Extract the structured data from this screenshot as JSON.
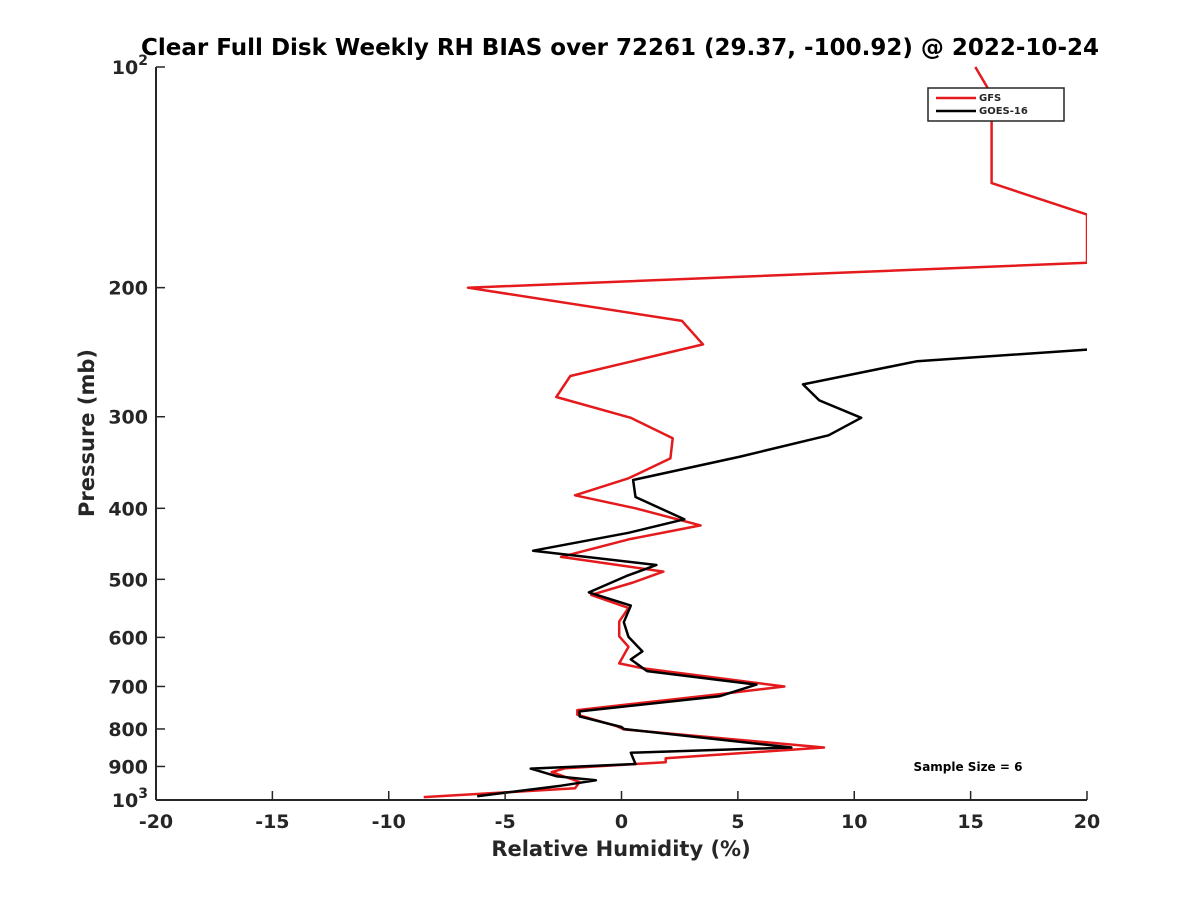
{
  "chart_data": {
    "type": "line",
    "title": "Clear Full Disk Weekly RH BIAS over 72261 (29.37, -100.92) @ 2022-10-24",
    "xlabel": "Relative Humidity (%)",
    "ylabel": "Pressure (mb)",
    "xlim": [
      -20,
      20
    ],
    "ylim": [
      100,
      1000
    ],
    "y_scale": "log",
    "y_reversed": true,
    "grid": false,
    "legend_position": "top-right",
    "x_ticks": [
      {
        "value": -20,
        "label": "-20"
      },
      {
        "value": -15,
        "label": "-15"
      },
      {
        "value": -10,
        "label": "-10"
      },
      {
        "value": -5,
        "label": "-5"
      },
      {
        "value": 0,
        "label": "0"
      },
      {
        "value": 5,
        "label": "5"
      },
      {
        "value": 10,
        "label": "10"
      },
      {
        "value": 15,
        "label": "15"
      },
      {
        "value": 20,
        "label": "20"
      }
    ],
    "y_ticks": [
      {
        "value": 100,
        "label": "10",
        "sup": "2"
      },
      {
        "value": 200,
        "label": "200",
        "sup": ""
      },
      {
        "value": 300,
        "label": "300",
        "sup": ""
      },
      {
        "value": 400,
        "label": "400",
        "sup": ""
      },
      {
        "value": 500,
        "label": "500",
        "sup": ""
      },
      {
        "value": 600,
        "label": "600",
        "sup": ""
      },
      {
        "value": 700,
        "label": "700",
        "sup": ""
      },
      {
        "value": 800,
        "label": "800",
        "sup": ""
      },
      {
        "value": 900,
        "label": "900",
        "sup": ""
      },
      {
        "value": 1000,
        "label": "10",
        "sup": "3"
      }
    ],
    "annotation": "Sample Size = 6",
    "series": [
      {
        "name": "GFS",
        "color": "#e41a1c",
        "points": [
          [
            15.2,
            100
          ],
          [
            16.4,
            116
          ],
          [
            15.9,
            117
          ],
          [
            15.9,
            144
          ],
          [
            20,
            159
          ],
          [
            20,
            185
          ],
          [
            -6.6,
            200
          ],
          [
            2.6,
            222
          ],
          [
            3.5,
            239
          ],
          [
            -2.2,
            264
          ],
          [
            -2.8,
            282
          ],
          [
            0.4,
            301
          ],
          [
            2.2,
            321
          ],
          [
            2.1,
            342
          ],
          [
            0.3,
            364
          ],
          [
            -2.0,
            384
          ],
          [
            0.6,
            400
          ],
          [
            3.4,
            422
          ],
          [
            0.3,
            441
          ],
          [
            -2.6,
            466
          ],
          [
            1.8,
            488
          ],
          [
            0.5,
            505
          ],
          [
            -1.3,
            525
          ],
          [
            0.3,
            547
          ],
          [
            -0.1,
            571
          ],
          [
            -0.1,
            598
          ],
          [
            0.3,
            618
          ],
          [
            -0.1,
            651
          ],
          [
            0.9,
            661
          ],
          [
            7.0,
            700
          ],
          [
            4.1,
            718
          ],
          [
            -1.9,
            754
          ],
          [
            -1.9,
            765
          ],
          [
            -0.2,
            793
          ],
          [
            0.1,
            801
          ],
          [
            8.7,
            848
          ],
          [
            1.9,
            877
          ],
          [
            1.9,
            888
          ],
          [
            -2.4,
            905
          ],
          [
            -3.0,
            916
          ],
          [
            -1.8,
            945
          ],
          [
            -2.0,
            964
          ],
          [
            -8.5,
            991
          ]
        ]
      },
      {
        "name": "GOES-16",
        "color": "#000000",
        "points": [
          [
            20,
            243
          ],
          [
            12.7,
            252
          ],
          [
            7.8,
            271
          ],
          [
            8.5,
            285
          ],
          [
            10.3,
            301
          ],
          [
            8.9,
            318
          ],
          [
            5.1,
            340
          ],
          [
            0.5,
            366
          ],
          [
            0.6,
            386
          ],
          [
            2.7,
            414
          ],
          [
            0.3,
            432
          ],
          [
            -3.8,
            457
          ],
          [
            1.5,
            478
          ],
          [
            0.2,
            495
          ],
          [
            -1.4,
            521
          ],
          [
            0.4,
            543
          ],
          [
            0.1,
            572
          ],
          [
            0.3,
            599
          ],
          [
            0.9,
            627
          ],
          [
            0.4,
            643
          ],
          [
            1.1,
            667
          ],
          [
            5.8,
            696
          ],
          [
            4.2,
            722
          ],
          [
            -1.8,
            757
          ],
          [
            -1.8,
            769
          ],
          [
            0.0,
            795
          ],
          [
            0.1,
            800
          ],
          [
            7.3,
            848
          ],
          [
            0.4,
            862
          ],
          [
            0.6,
            893
          ],
          [
            -3.9,
            906
          ],
          [
            -2.8,
            928
          ],
          [
            -1.1,
            940
          ],
          [
            -2.6,
            956
          ],
          [
            -6.2,
            988
          ]
        ]
      }
    ]
  }
}
